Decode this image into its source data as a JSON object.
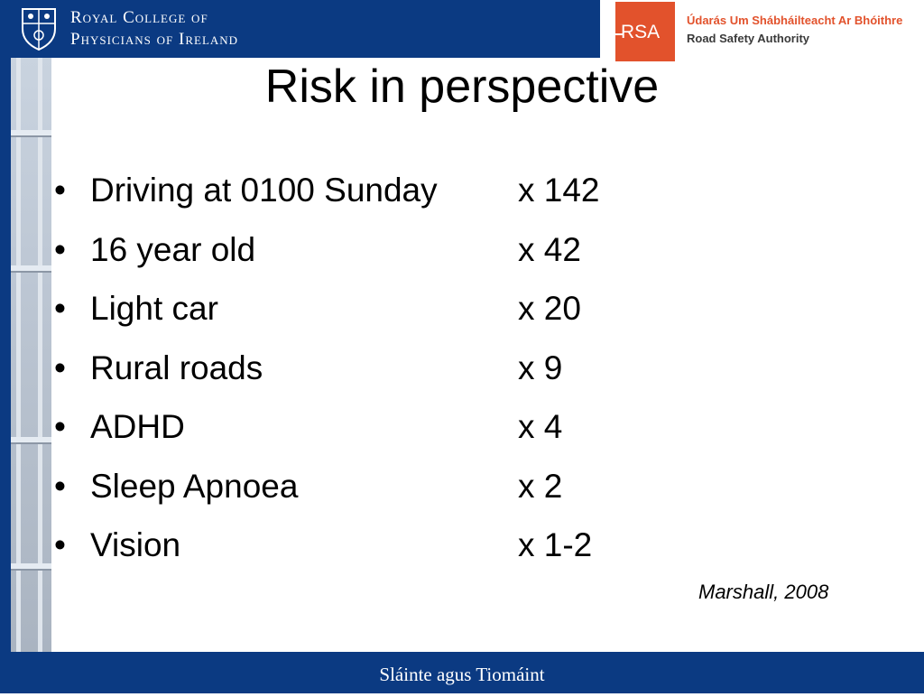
{
  "header": {
    "org_line1": "Royal College of",
    "org_line2": "Physicians of Ireland",
    "partner_logo_text": "RSA",
    "partner_name_irish": "Údarás Um Shábháilteacht Ar Bhóithre",
    "partner_name_english": "Road Safety Authority",
    "crest_icon": "crest-icon",
    "brand_color": "#0b3a82",
    "partner_color": "#e2522c"
  },
  "slide": {
    "title": "Risk in perspective",
    "items": [
      {
        "factor": "Driving at 0100 Sunday",
        "multiplier": "x 142"
      },
      {
        "factor": "16 year old",
        "multiplier": "x 42"
      },
      {
        "factor": "Light car",
        "multiplier": "x 20"
      },
      {
        "factor": "Rural roads",
        "multiplier": "x 9"
      },
      {
        "factor": "ADHD",
        "multiplier": "x 4"
      },
      {
        "factor": "Sleep Apnoea",
        "multiplier": "x 2"
      },
      {
        "factor": "Vision",
        "multiplier": "x 1-2"
      }
    ],
    "bullet_glyph": "•",
    "citation": "Marshall, 2008"
  },
  "footer": {
    "text": "Sláinte agus Tiomáint"
  }
}
